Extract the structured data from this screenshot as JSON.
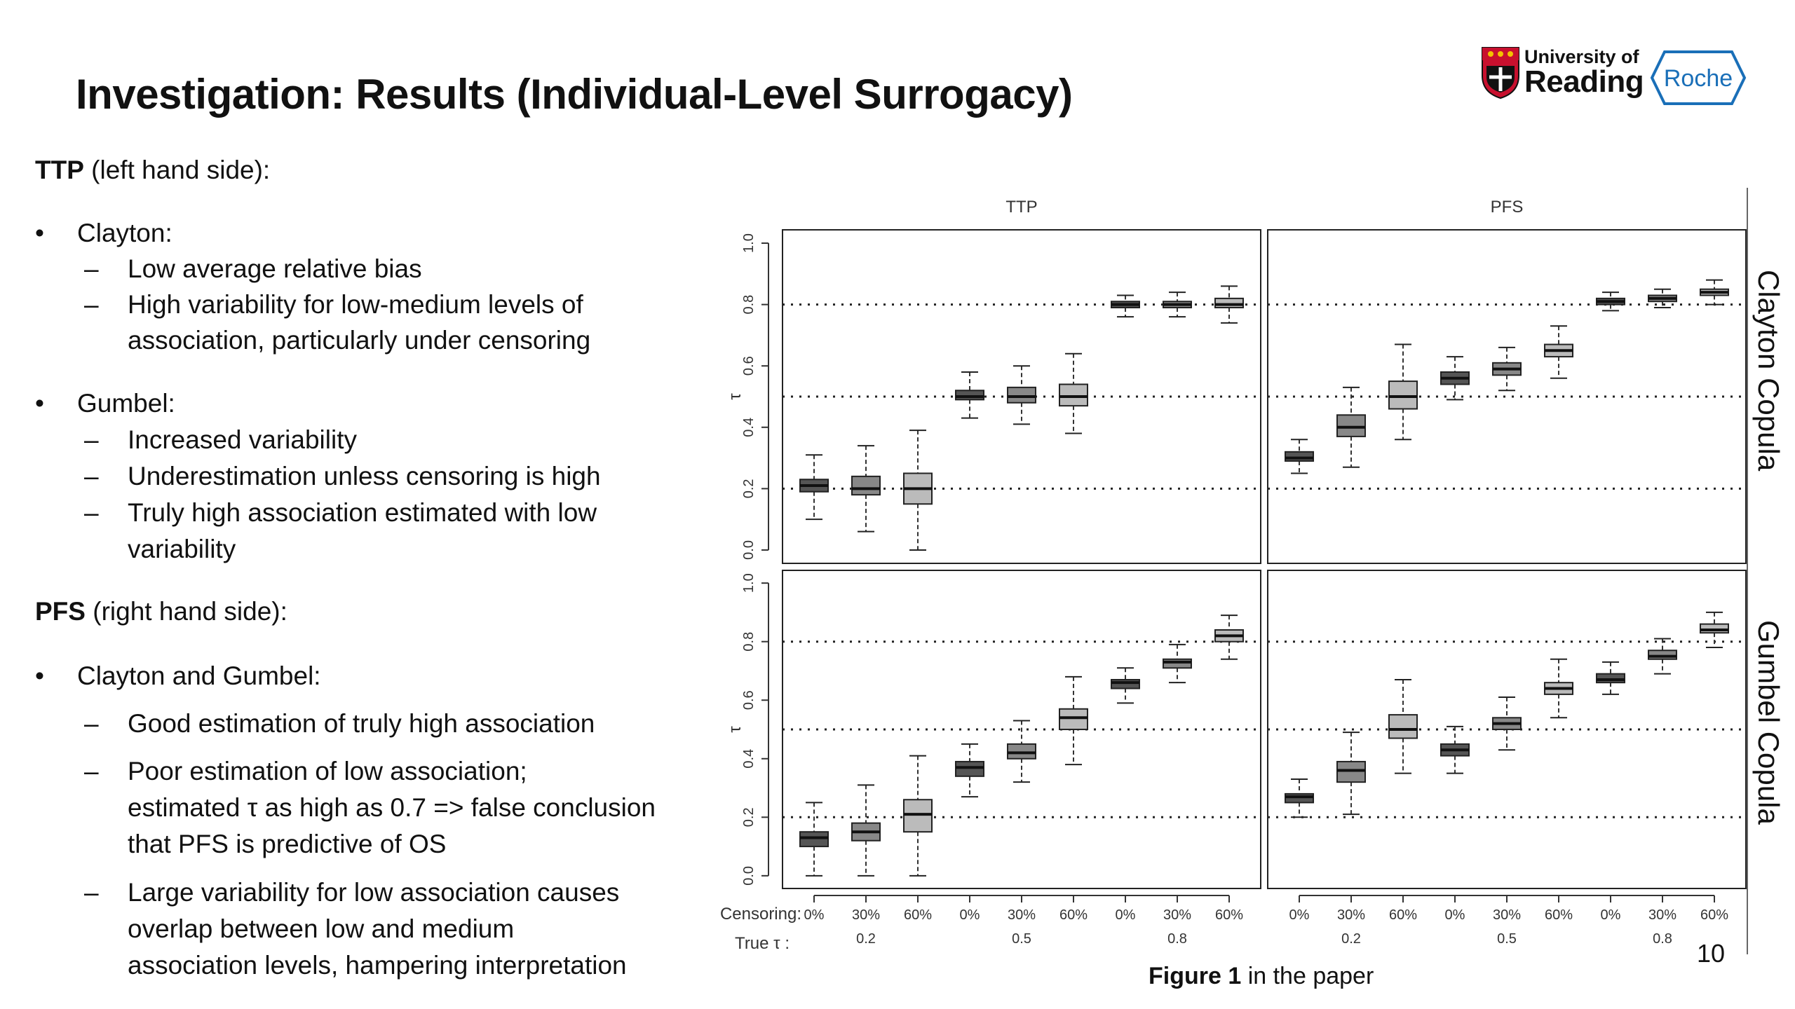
{
  "slide": {
    "title": "Investigation: Results (Individual-Level Surrogacy)",
    "page_number": "10",
    "caption_bold": "Figure 1",
    "caption_rest": " in the paper",
    "logos": {
      "university_line1": "University of",
      "university_line2": "Reading",
      "roche": "Roche"
    }
  },
  "text": {
    "ttp_heading_bold": "TTP",
    "ttp_heading_rest": " (left hand side):",
    "clayton": "Clayton:",
    "clayton_items": [
      "Low average relative bias",
      "High variability for low-medium levels of",
      "association, particularly under censoring"
    ],
    "gumbel": "Gumbel:",
    "gumbel_items": [
      "Increased variability",
      "Underestimation unless censoring is high",
      "Truly high association estimated with low",
      "variability"
    ],
    "pfs_heading_bold": "PFS",
    "pfs_heading_rest": " (right hand side):",
    "clayton_gumbel": "Clayton and Gumbel:",
    "cg_items": [
      "Good estimation of truly high association",
      "Poor estimation of low association;",
      "estimated τ as high as 0.7 => false conclusion",
      "that PFS is predictive of OS",
      "Large variability for low association causes",
      "overlap between low and medium",
      "association levels, hampering interpretation"
    ],
    "dash": "–",
    "dot": "•"
  },
  "chart_data": {
    "type": "boxplot",
    "columns": [
      "TTP",
      "PFS"
    ],
    "rows": [
      "Clayton Copula",
      "Gumbel Copula"
    ],
    "ylabel": "τ",
    "ylim": [
      0.0,
      1.0
    ],
    "yticks": [
      "0.0",
      "0.2",
      "0.4",
      "0.6",
      "0.8",
      "1.0"
    ],
    "reference_lines": [
      0.2,
      0.5,
      0.8
    ],
    "x_row1_label": "Censoring:",
    "x_row2_label": "True  τ :",
    "censoring": [
      "0%",
      "30%",
      "60%",
      "0%",
      "30%",
      "60%",
      "0%",
      "30%",
      "60%"
    ],
    "true_tau_groups": [
      "0.2",
      "0.5",
      "0.8"
    ],
    "fills": [
      "#555555",
      "#888888",
      "#bbbbbb"
    ],
    "panels": [
      {
        "row": "Clayton Copula",
        "col": "TTP",
        "boxes": [
          {
            "lo": 0.1,
            "q1": 0.19,
            "med": 0.21,
            "q3": 0.23,
            "hi": 0.31
          },
          {
            "lo": 0.06,
            "q1": 0.18,
            "med": 0.2,
            "q3": 0.24,
            "hi": 0.34
          },
          {
            "lo": 0.0,
            "q1": 0.15,
            "med": 0.2,
            "q3": 0.25,
            "hi": 0.39
          },
          {
            "lo": 0.43,
            "q1": 0.49,
            "med": 0.5,
            "q3": 0.52,
            "hi": 0.58
          },
          {
            "lo": 0.41,
            "q1": 0.48,
            "med": 0.5,
            "q3": 0.53,
            "hi": 0.6
          },
          {
            "lo": 0.38,
            "q1": 0.47,
            "med": 0.5,
            "q3": 0.54,
            "hi": 0.64
          },
          {
            "lo": 0.76,
            "q1": 0.79,
            "med": 0.8,
            "q3": 0.81,
            "hi": 0.83
          },
          {
            "lo": 0.76,
            "q1": 0.79,
            "med": 0.8,
            "q3": 0.81,
            "hi": 0.84
          },
          {
            "lo": 0.74,
            "q1": 0.79,
            "med": 0.8,
            "q3": 0.82,
            "hi": 0.86
          }
        ]
      },
      {
        "row": "Clayton Copula",
        "col": "PFS",
        "boxes": [
          {
            "lo": 0.25,
            "q1": 0.29,
            "med": 0.3,
            "q3": 0.32,
            "hi": 0.36
          },
          {
            "lo": 0.27,
            "q1": 0.37,
            "med": 0.4,
            "q3": 0.44,
            "hi": 0.53
          },
          {
            "lo": 0.36,
            "q1": 0.46,
            "med": 0.5,
            "q3": 0.55,
            "hi": 0.67
          },
          {
            "lo": 0.49,
            "q1": 0.54,
            "med": 0.56,
            "q3": 0.58,
            "hi": 0.63
          },
          {
            "lo": 0.52,
            "q1": 0.57,
            "med": 0.59,
            "q3": 0.61,
            "hi": 0.66
          },
          {
            "lo": 0.56,
            "q1": 0.63,
            "med": 0.65,
            "q3": 0.67,
            "hi": 0.73
          },
          {
            "lo": 0.78,
            "q1": 0.8,
            "med": 0.81,
            "q3": 0.82,
            "hi": 0.84
          },
          {
            "lo": 0.79,
            "q1": 0.81,
            "med": 0.82,
            "q3": 0.83,
            "hi": 0.85
          },
          {
            "lo": 0.8,
            "q1": 0.83,
            "med": 0.84,
            "q3": 0.85,
            "hi": 0.88
          }
        ]
      },
      {
        "row": "Gumbel Copula",
        "col": "TTP",
        "boxes": [
          {
            "lo": 0.0,
            "q1": 0.1,
            "med": 0.13,
            "q3": 0.15,
            "hi": 0.25
          },
          {
            "lo": 0.0,
            "q1": 0.12,
            "med": 0.15,
            "q3": 0.18,
            "hi": 0.31
          },
          {
            "lo": 0.0,
            "q1": 0.15,
            "med": 0.21,
            "q3": 0.26,
            "hi": 0.41
          },
          {
            "lo": 0.27,
            "q1": 0.34,
            "med": 0.37,
            "q3": 0.39,
            "hi": 0.45
          },
          {
            "lo": 0.32,
            "q1": 0.4,
            "med": 0.42,
            "q3": 0.45,
            "hi": 0.53
          },
          {
            "lo": 0.38,
            "q1": 0.5,
            "med": 0.54,
            "q3": 0.57,
            "hi": 0.68
          },
          {
            "lo": 0.59,
            "q1": 0.64,
            "med": 0.66,
            "q3": 0.67,
            "hi": 0.71
          },
          {
            "lo": 0.66,
            "q1": 0.71,
            "med": 0.73,
            "q3": 0.74,
            "hi": 0.79
          },
          {
            "lo": 0.74,
            "q1": 0.8,
            "med": 0.82,
            "q3": 0.84,
            "hi": 0.89
          }
        ]
      },
      {
        "row": "Gumbel Copula",
        "col": "PFS",
        "boxes": [
          {
            "lo": 0.2,
            "q1": 0.25,
            "med": 0.27,
            "q3": 0.28,
            "hi": 0.33
          },
          {
            "lo": 0.21,
            "q1": 0.32,
            "med": 0.36,
            "q3": 0.39,
            "hi": 0.49
          },
          {
            "lo": 0.35,
            "q1": 0.47,
            "med": 0.5,
            "q3": 0.55,
            "hi": 0.67
          },
          {
            "lo": 0.35,
            "q1": 0.41,
            "med": 0.43,
            "q3": 0.45,
            "hi": 0.51
          },
          {
            "lo": 0.43,
            "q1": 0.5,
            "med": 0.52,
            "q3": 0.54,
            "hi": 0.61
          },
          {
            "lo": 0.54,
            "q1": 0.62,
            "med": 0.64,
            "q3": 0.66,
            "hi": 0.74
          },
          {
            "lo": 0.62,
            "q1": 0.66,
            "med": 0.67,
            "q3": 0.69,
            "hi": 0.73
          },
          {
            "lo": 0.69,
            "q1": 0.74,
            "med": 0.75,
            "q3": 0.77,
            "hi": 0.81
          },
          {
            "lo": 0.78,
            "q1": 0.83,
            "med": 0.84,
            "q3": 0.86,
            "hi": 0.9
          }
        ]
      }
    ]
  }
}
